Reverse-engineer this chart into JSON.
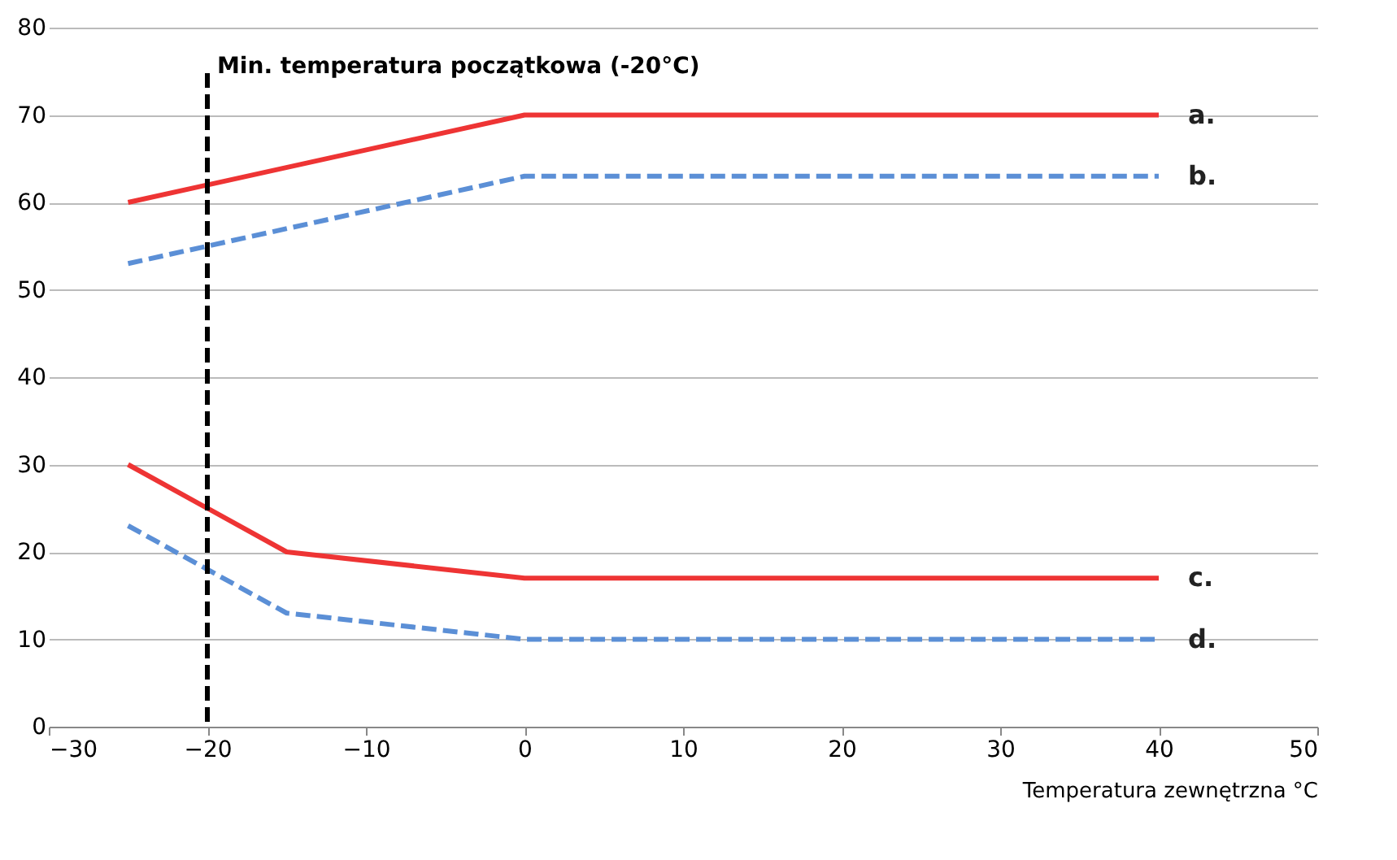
{
  "chart_data": {
    "type": "line",
    "xlabel": "Temperatura zewnętrzna °C",
    "xlim": [
      -30,
      50
    ],
    "xticks": [
      -30,
      -20,
      -10,
      0,
      10,
      20,
      30,
      40,
      50
    ],
    "ylim": [
      0,
      80
    ],
    "yticks": [
      0,
      10,
      20,
      30,
      40,
      50,
      60,
      70,
      80
    ],
    "grid": "y",
    "legend": false,
    "series": [
      {
        "name": "a.",
        "color": "#ee3434",
        "line_style": "solid",
        "x": [
          -25,
          0,
          40
        ],
        "values": [
          60,
          70,
          70
        ]
      },
      {
        "name": "b.",
        "color": "#5b8fd6",
        "line_style": "dashed",
        "x": [
          -25,
          0,
          40
        ],
        "values": [
          53,
          63,
          63
        ]
      },
      {
        "name": "c.",
        "color": "#ee3434",
        "line_style": "solid",
        "x": [
          -25,
          -15,
          0,
          40
        ],
        "values": [
          30,
          20,
          17,
          17
        ]
      },
      {
        "name": "d.",
        "color": "#5b8fd6",
        "line_style": "dashed",
        "x": [
          -25,
          -15,
          0,
          40
        ],
        "values": [
          23,
          13,
          10,
          10
        ]
      }
    ],
    "ref_lines": [
      {
        "axis": "x",
        "value": -20,
        "label": "Min. temperatura początkowa (-20°C)",
        "color": "#000000",
        "line_style": "dashed"
      }
    ]
  }
}
